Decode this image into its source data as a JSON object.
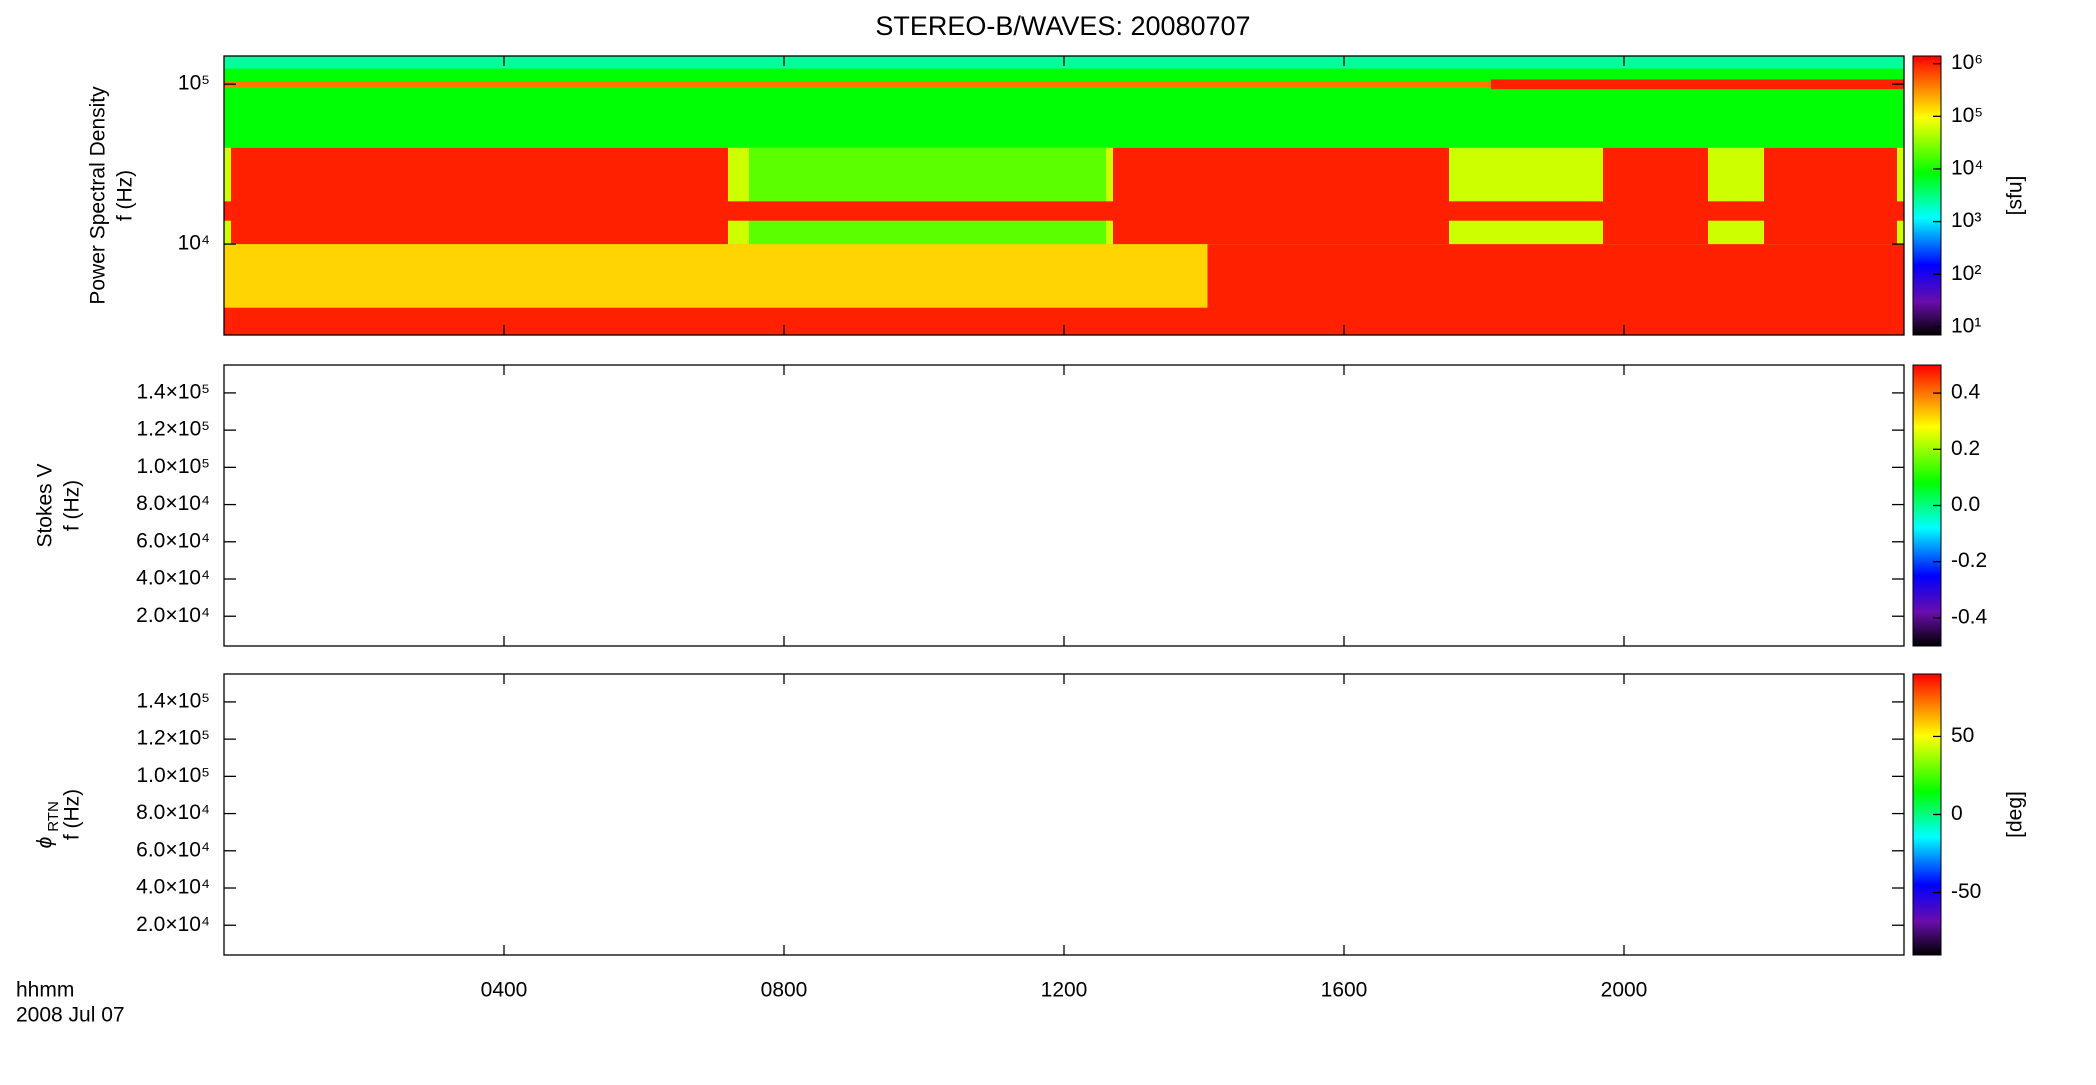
{
  "chart_data": [
    {
      "type": "spectrogram",
      "title": "STEREO-B/WAVES: 20080707",
      "ylabel": "Power Spectral Density",
      "ylabel_freq": "f (Hz)",
      "xlim": [
        0,
        24
      ],
      "xticks": [
        4,
        8,
        12,
        16,
        20
      ],
      "ylog": true,
      "ylim": [
        2700,
        150000
      ],
      "yticks": [
        {
          "value": 10000,
          "label": "10⁴"
        },
        {
          "value": 100000,
          "label": "10⁵"
        }
      ],
      "zlog": true,
      "zlim": [
        7,
        1400000
      ],
      "zlabel": "[sfu]",
      "zticks": [
        {
          "value": 10,
          "label": "10¹"
        },
        {
          "value": 100,
          "label": "10²"
        },
        {
          "value": 1000,
          "label": "10³"
        },
        {
          "value": 10000,
          "label": "10⁴"
        },
        {
          "value": 100000,
          "label": "10⁵"
        },
        {
          "value": 1000000,
          "label": "10⁶"
        }
      ],
      "regions": [
        {
          "t": [
            0,
            24
          ],
          "f": [
            2700,
            150000
          ],
          "level": 8000
        },
        {
          "t": [
            0,
            24
          ],
          "f": [
            125000,
            150000
          ],
          "level": 2500
        },
        {
          "t": [
            0,
            24
          ],
          "f": [
            2700,
            10000
          ],
          "level": 150000
        },
        {
          "t": [
            0,
            14.05
          ],
          "f": [
            2700,
            4000
          ],
          "level": 1000000
        },
        {
          "t": [
            14.05,
            24
          ],
          "f": [
            2700,
            10000
          ],
          "level": 1000000
        },
        {
          "t": [
            0,
            24
          ],
          "f": [
            10000,
            40000
          ],
          "level": 60000
        },
        {
          "t": [
            7.5,
            12.6
          ],
          "f": [
            10000,
            40000
          ],
          "level": 20000
        },
        {
          "t": [
            0.1,
            7.2
          ],
          "f": [
            10000,
            40000
          ],
          "level": 1000000
        },
        {
          "t": [
            12.7,
            17.5
          ],
          "f": [
            10000,
            40000
          ],
          "level": 1000000
        },
        {
          "t": [
            19.7,
            21.2
          ],
          "f": [
            10000,
            40000
          ],
          "level": 1000000
        },
        {
          "t": [
            22,
            23.9
          ],
          "f": [
            10000,
            40000
          ],
          "level": 1000000
        },
        {
          "t": [
            0,
            24
          ],
          "f": [
            14000,
            18500
          ],
          "level": 1000000
        },
        {
          "t": [
            0,
            18.1
          ],
          "f": [
            96000,
            104000
          ],
          "level": 400000
        },
        {
          "t": [
            18.1,
            24
          ],
          "f": [
            93000,
            107000
          ],
          "level": 1000000
        }
      ]
    },
    {
      "type": "spectrogram",
      "ylabel": "Stokes V",
      "ylabel_freq": "f (Hz)",
      "xlim": [
        0,
        24
      ],
      "xticks": [
        4,
        8,
        12,
        16,
        20
      ],
      "ylog": false,
      "ylim": [
        4000,
        155000
      ],
      "yticks": [
        {
          "value": 20000,
          "label": "2.0×10⁴"
        },
        {
          "value": 40000,
          "label": "4.0×10⁴"
        },
        {
          "value": 60000,
          "label": "6.0×10⁴"
        },
        {
          "value": 80000,
          "label": "8.0×10⁴"
        },
        {
          "value": 100000,
          "label": "1.0×10⁵"
        },
        {
          "value": 120000,
          "label": "1.2×10⁵"
        },
        {
          "value": 140000,
          "label": "1.4×10⁵"
        }
      ],
      "zlog": false,
      "zlim": [
        -0.5,
        0.5
      ],
      "zticks": [
        0.4,
        0.2,
        {
          "value": 0,
          "label": "0.0"
        },
        -0.2,
        -0.4
      ],
      "regions": []
    },
    {
      "type": "spectrogram",
      "ylabel_symbol": "ϕ",
      "ylabel_subscript": "RTN",
      "ylabel_freq": "f (Hz)",
      "xlim": [
        0,
        24
      ],
      "xticks": [
        {
          "value": 4,
          "label": "0400"
        },
        {
          "value": 8,
          "label": "0800"
        },
        {
          "value": 12,
          "label": "1200"
        },
        {
          "value": 16,
          "label": "1600"
        },
        {
          "value": 20,
          "label": "2000"
        }
      ],
      "xlabel": "hhmm",
      "date": "2008 Jul 07",
      "ylog": false,
      "ylim": [
        4000,
        155000
      ],
      "yticks": [
        {
          "value": 20000,
          "label": "2.0×10⁴"
        },
        {
          "value": 40000,
          "label": "4.0×10⁴"
        },
        {
          "value": 60000,
          "label": "6.0×10⁴"
        },
        {
          "value": 80000,
          "label": "8.0×10⁴"
        },
        {
          "value": 100000,
          "label": "1.0×10⁵"
        },
        {
          "value": 120000,
          "label": "1.2×10⁵"
        },
        {
          "value": 140000,
          "label": "1.4×10⁵"
        }
      ],
      "zlog": false,
      "zlim": [
        -90,
        90
      ],
      "zlabel": "[deg]",
      "zticks": [
        50,
        0,
        -50
      ],
      "regions": []
    }
  ]
}
